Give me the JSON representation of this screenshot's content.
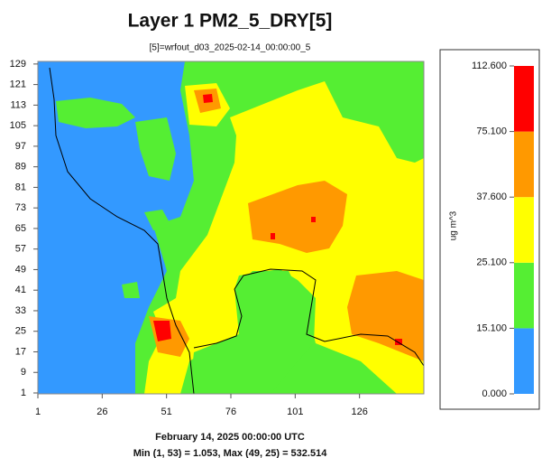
{
  "chart_data": {
    "type": "heatmap",
    "title": "Layer 1 PM2_5_DRY[5]",
    "subtitle": "[5]=wrfout_d03_2025-02-14_00:00:00_5",
    "xlim": [
      1,
      151
    ],
    "ylim": [
      1,
      130
    ],
    "xticks": [
      1,
      26,
      51,
      76,
      101,
      126
    ],
    "yticks": [
      1,
      9,
      17,
      25,
      33,
      41,
      49,
      57,
      65,
      73,
      81,
      89,
      97,
      105,
      113,
      121,
      129
    ],
    "colorbar": {
      "label": "ug m^3",
      "ticks": [
        {
          "value": 0,
          "label": "0.000"
        },
        {
          "value": 15.1,
          "label": "15.100"
        },
        {
          "value": 25.1,
          "label": "25.100"
        },
        {
          "value": 37.6,
          "label": "37.600"
        },
        {
          "value": 75.1,
          "label": "75.100"
        },
        {
          "value": 112.6,
          "label": "112.600"
        }
      ],
      "colors": [
        "#3399ff",
        "#55ee33",
        "#ffff00",
        "#ff9900",
        "#ff0000"
      ]
    },
    "footer": [
      "February 14, 2025 00:00:00 UTC",
      "Min (1, 53) = 1.053, Max (49, 25) = 532.514"
    ]
  }
}
